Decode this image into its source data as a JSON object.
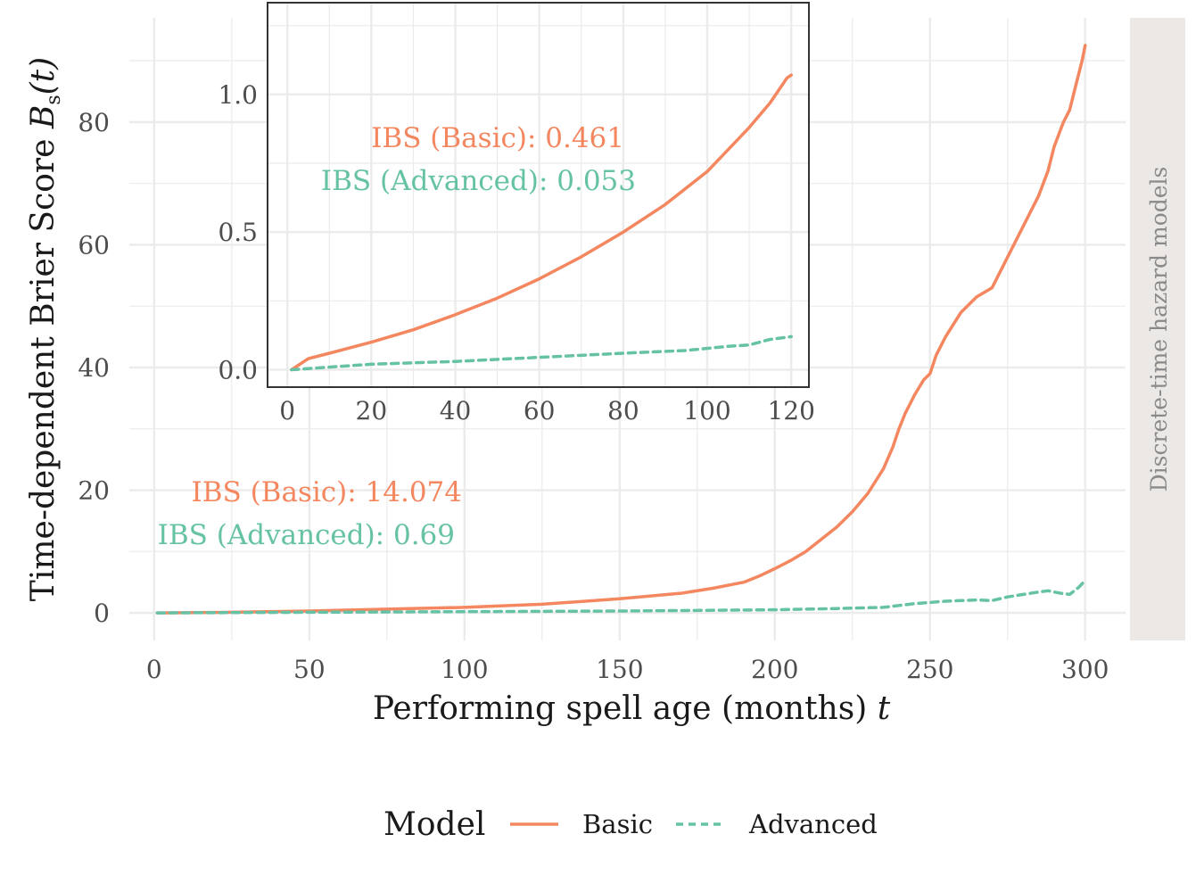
{
  "colors": {
    "basic": "#F4875F",
    "advanced": "#66C2A5",
    "strip_bg": "#EBE8E6",
    "grid": "#EBEBEB"
  },
  "facet_label": "Discrete-time hazard models",
  "legend": {
    "title": "Model",
    "items": [
      "Basic",
      "Advanced"
    ]
  },
  "chart_data": [
    {
      "type": "line",
      "xlabel": "Performing spell age (months)",
      "xlabel_var": "t",
      "ylabel": "Time-dependent Brier Score",
      "ylabel_math": "B",
      "ylabel_sub": "s",
      "ylabel_arg": "(t)",
      "xlim": [
        -8,
        313
      ],
      "ylim": [
        -4.5,
        97
      ],
      "xticks": [
        0,
        50,
        100,
        150,
        200,
        250,
        300
      ],
      "yticks": [
        0,
        20,
        40,
        60,
        80
      ],
      "ytick_labels": [
        "0",
        "20",
        "40",
        "60",
        "80"
      ],
      "annotations": [
        "IBS (Basic): 14.074",
        "IBS (Advanced): 0.69"
      ],
      "series": [
        {
          "name": "Basic",
          "style": "solid",
          "x": [
            1,
            25,
            50,
            75,
            100,
            125,
            150,
            170,
            180,
            190,
            195,
            200,
            205,
            210,
            215,
            220,
            225,
            230,
            235,
            238,
            240,
            242,
            245,
            248,
            250,
            252,
            255,
            260,
            265,
            270,
            275,
            280,
            285,
            288,
            290,
            293,
            295,
            297,
            299,
            300
          ],
          "y": [
            0,
            0.1,
            0.3,
            0.6,
            0.9,
            1.4,
            2.3,
            3.2,
            4.0,
            5.0,
            6.0,
            7.2,
            8.5,
            10.0,
            12.0,
            14.0,
            16.5,
            19.5,
            23.5,
            27.0,
            30.0,
            32.5,
            35.5,
            38.0,
            39.0,
            42.0,
            45.0,
            49.0,
            51.5,
            53.0,
            58.0,
            63.0,
            68.0,
            72.0,
            76.0,
            80.0,
            82.0,
            86.0,
            90.0,
            92.5
          ]
        },
        {
          "name": "Advanced",
          "style": "dashed",
          "x": [
            1,
            50,
            100,
            150,
            200,
            220,
            235,
            240,
            245,
            250,
            255,
            260,
            265,
            270,
            275,
            280,
            285,
            288,
            292,
            295,
            298,
            300
          ],
          "y": [
            0,
            0.1,
            0.2,
            0.3,
            0.5,
            0.7,
            0.9,
            1.2,
            1.5,
            1.7,
            1.9,
            2.0,
            2.1,
            2.0,
            2.6,
            3.0,
            3.4,
            3.6,
            3.2,
            3.0,
            4.2,
            5.3
          ]
        }
      ]
    },
    {
      "type": "line",
      "title": "",
      "xlim": [
        -4.5,
        124
      ],
      "ylim": [
        -0.06,
        1.33
      ],
      "xticks": [
        0,
        20,
        40,
        60,
        80,
        100,
        120
      ],
      "yticks": [
        0,
        0.5,
        1.0
      ],
      "ytick_labels": [
        "0.0",
        "0.5",
        "1.0"
      ],
      "annotations": [
        "IBS (Basic): 0.461",
        "IBS (Advanced): 0.053"
      ],
      "series": [
        {
          "name": "Basic",
          "style": "solid",
          "x": [
            1,
            5,
            10,
            20,
            30,
            40,
            50,
            60,
            70,
            80,
            90,
            100,
            110,
            115,
            119,
            120
          ],
          "y": [
            0,
            0.04,
            0.06,
            0.1,
            0.145,
            0.2,
            0.26,
            0.33,
            0.41,
            0.5,
            0.6,
            0.72,
            0.88,
            0.97,
            1.06,
            1.07
          ]
        },
        {
          "name": "Advanced",
          "style": "dashed",
          "x": [
            1,
            20,
            40,
            60,
            80,
            95,
            105,
            110,
            115,
            120
          ],
          "y": [
            0,
            0.02,
            0.03,
            0.045,
            0.06,
            0.07,
            0.085,
            0.09,
            0.11,
            0.12
          ]
        }
      ]
    }
  ]
}
